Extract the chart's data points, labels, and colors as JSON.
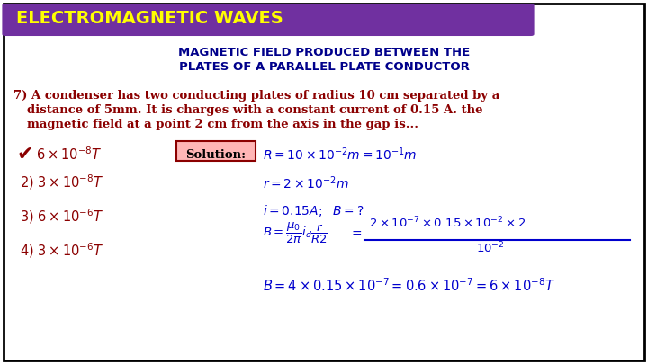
{
  "bg_color": "#ffffff",
  "border_color": "#000000",
  "header_bg": "#7030a0",
  "header_text": "ELECTROMAGNETIC WAVES",
  "header_text_color": "#ffff00",
  "subtitle_line1": "MAGNETIC FIELD PRODUCED BETWEEN THE",
  "subtitle_line2": "PLATES OF A PARALLEL PLATE CONDUCTOR",
  "subtitle_color": "#00008b",
  "question_color": "#8b0000",
  "solution_color": "#0000cd",
  "checkmark_color": "#8b0000",
  "solution_box_bg": "#ffb6b6",
  "solution_box_border": "#8b0000"
}
